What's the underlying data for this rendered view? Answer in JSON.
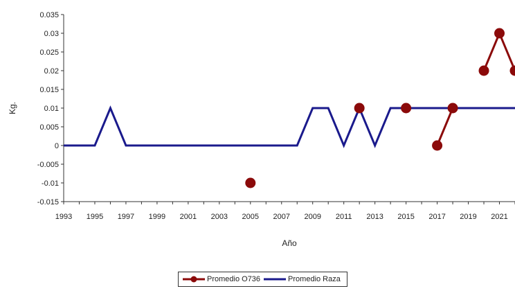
{
  "chart_data": {
    "type": "line",
    "xlabel": "Año",
    "ylabel": "Kg.",
    "xlim": [
      1993,
      2022
    ],
    "ylim": [
      -0.015,
      0.035
    ],
    "yticks": [
      -0.015,
      -0.01,
      -0.005,
      0,
      0.005,
      0.01,
      0.015,
      0.02,
      0.025,
      0.03,
      0.035
    ],
    "ytick_labels": [
      "-0.015",
      "-0.01",
      "-0.005",
      "0",
      "0.005",
      "0.01",
      "0.015",
      "0.02",
      "0.025",
      "0.03",
      "0.035"
    ],
    "xticks": [
      1993,
      1995,
      1997,
      1999,
      2001,
      2003,
      2005,
      2007,
      2009,
      2011,
      2013,
      2015,
      2017,
      2019,
      2021
    ],
    "xtick_labels": [
      "1993",
      "1995",
      "1997",
      "1999",
      "2001",
      "2003",
      "2005",
      "2007",
      "2009",
      "2011",
      "2013",
      "2015",
      "2017",
      "2019",
      "2021"
    ],
    "grid": false,
    "legend_position": "bottom",
    "series": [
      {
        "name": "Promedio O736",
        "color": "#8b0a0a",
        "marker": "circle",
        "points": [
          {
            "x": 2005,
            "y": -0.01
          },
          {
            "x": 2012,
            "y": 0.01
          },
          {
            "x": 2015,
            "y": 0.01
          },
          {
            "x": 2017,
            "y": 0
          },
          {
            "x": 2018,
            "y": 0.01
          },
          {
            "x": 2020,
            "y": 0.02
          },
          {
            "x": 2021,
            "y": 0.03
          },
          {
            "x": 2022,
            "y": 0.02
          }
        ]
      },
      {
        "name": "Promedio Raza",
        "color": "#1a1a8c",
        "marker": "none",
        "points": [
          {
            "x": 1993,
            "y": 0
          },
          {
            "x": 1994,
            "y": 0
          },
          {
            "x": 1995,
            "y": 0
          },
          {
            "x": 1996,
            "y": 0.01
          },
          {
            "x": 1997,
            "y": 0
          },
          {
            "x": 1998,
            "y": 0
          },
          {
            "x": 1999,
            "y": 0
          },
          {
            "x": 2000,
            "y": 0
          },
          {
            "x": 2001,
            "y": 0
          },
          {
            "x": 2002,
            "y": 0
          },
          {
            "x": 2003,
            "y": 0
          },
          {
            "x": 2004,
            "y": 0
          },
          {
            "x": 2005,
            "y": 0
          },
          {
            "x": 2006,
            "y": 0
          },
          {
            "x": 2007,
            "y": 0
          },
          {
            "x": 2008,
            "y": 0
          },
          {
            "x": 2009,
            "y": 0.01
          },
          {
            "x": 2010,
            "y": 0.01
          },
          {
            "x": 2011,
            "y": 0
          },
          {
            "x": 2012,
            "y": 0.01
          },
          {
            "x": 2013,
            "y": 0
          },
          {
            "x": 2014,
            "y": 0.01
          },
          {
            "x": 2015,
            "y": 0.01
          },
          {
            "x": 2016,
            "y": 0.01
          },
          {
            "x": 2017,
            "y": 0.01
          },
          {
            "x": 2018,
            "y": 0.01
          },
          {
            "x": 2019,
            "y": 0.01
          },
          {
            "x": 2020,
            "y": 0.01
          },
          {
            "x": 2021,
            "y": 0.01
          },
          {
            "x": 2022,
            "y": 0.01
          }
        ]
      }
    ]
  }
}
